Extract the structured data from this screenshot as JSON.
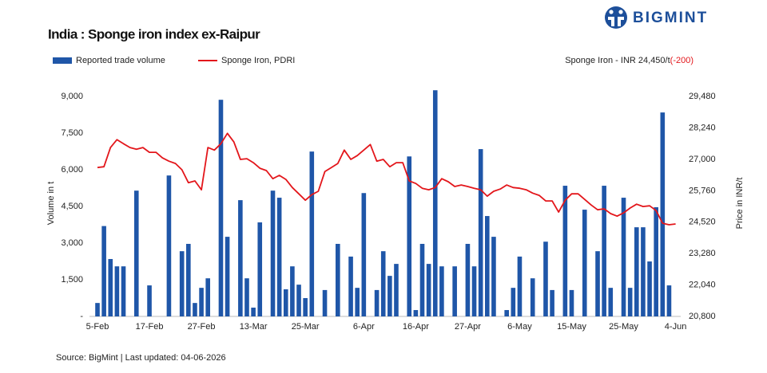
{
  "chart_data": {
    "type": "bar-line",
    "title": "India : Sponge iron index ex-Raipur",
    "brand": "BIGMINT",
    "annotation": {
      "text": "Sponge Iron - INR 24,450/t",
      "change": "(-200)"
    },
    "source": "Source: BigMint | Last updated: 04-06-2026",
    "ylabel": "Volume in t",
    "y2label": "Price in INR/t",
    "categories": [
      "5-Feb",
      null,
      null,
      null,
      null,
      null,
      null,
      null,
      "17-Feb",
      null,
      null,
      null,
      null,
      null,
      null,
      null,
      "27-Feb",
      null,
      null,
      null,
      null,
      null,
      null,
      null,
      "13-Mar",
      null,
      null,
      null,
      null,
      null,
      null,
      null,
      "25-Mar",
      null,
      null,
      null,
      null,
      null,
      null,
      null,
      null,
      "6-Apr",
      null,
      null,
      null,
      null,
      null,
      null,
      null,
      "16-Apr",
      null,
      null,
      null,
      null,
      null,
      null,
      null,
      "27-Apr",
      null,
      null,
      null,
      null,
      null,
      null,
      null,
      "6-May",
      null,
      null,
      null,
      null,
      null,
      null,
      null,
      "15-May",
      null,
      null,
      null,
      null,
      null,
      null,
      null,
      "25-May",
      null,
      null,
      null,
      null,
      null,
      null,
      null,
      "4-Jun"
    ],
    "series": [
      {
        "name": "Reported trade volume",
        "color": "#1f56a8",
        "kind": "bar",
        "values": [
          550,
          3700,
          2350,
          2050,
          2050,
          null,
          5150,
          null,
          1270,
          null,
          null,
          5770,
          null,
          2670,
          2970,
          550,
          1170,
          1560,
          null,
          8870,
          3260,
          null,
          4760,
          1560,
          360,
          3850,
          null,
          5150,
          4860,
          1110,
          2050,
          1300,
          750,
          6750,
          null,
          1080,
          null,
          2970,
          null,
          2450,
          1170,
          5050,
          null,
          1080,
          2670,
          1660,
          2150,
          null,
          6550,
          260,
          2970,
          2150,
          9260,
          2050,
          null,
          2050,
          null,
          2970,
          2050,
          6850,
          4110,
          3260,
          null,
          260,
          1170,
          2450,
          null,
          1560,
          null,
          3060,
          1080,
          null,
          5350,
          1080,
          null,
          4370,
          null,
          2670,
          5350,
          1170,
          null,
          4860,
          1170,
          3650,
          3650,
          2250,
          4470,
          8350,
          1270,
          null
        ]
      },
      {
        "name": "Sponge Iron, PDRI",
        "color": "#e3161b",
        "kind": "line",
        "axis": "y2",
        "values": [
          26680,
          26710,
          27470,
          27780,
          27620,
          27470,
          27400,
          27470,
          27280,
          27280,
          27060,
          26930,
          26840,
          26590,
          26080,
          26150,
          25800,
          27470,
          27370,
          27620,
          28030,
          27690,
          27000,
          27030,
          26870,
          26650,
          26560,
          26240,
          26370,
          26210,
          25890,
          25640,
          25390,
          25610,
          25740,
          26520,
          26680,
          26840,
          27370,
          27000,
          27150,
          27370,
          27590,
          26930,
          27000,
          26710,
          26870,
          26870,
          26150,
          26050,
          25860,
          25800,
          25890,
          26240,
          26120,
          25930,
          25990,
          25930,
          25860,
          25800,
          25550,
          25740,
          25830,
          25990,
          25890,
          25860,
          25800,
          25670,
          25580,
          25360,
          25360,
          24920,
          25390,
          25640,
          25640,
          25420,
          25200,
          25010,
          25050,
          24860,
          24760,
          24890,
          25080,
          25230,
          25140,
          25170,
          24980,
          24480,
          24420,
          24450
        ]
      }
    ],
    "ylim": [
      0,
      9300
    ],
    "yticks": [
      {
        "value": 0,
        "label": "-"
      },
      {
        "value": 1500,
        "label": "1,500"
      },
      {
        "value": 3000,
        "label": "3,000"
      },
      {
        "value": 4500,
        "label": "4,500"
      },
      {
        "value": 6000,
        "label": "6,000"
      },
      {
        "value": 7500,
        "label": "7,500"
      },
      {
        "value": 9000,
        "label": "9,000"
      }
    ],
    "y2lim": [
      20800,
      29770
    ],
    "y2ticks": [
      {
        "value": 20800,
        "label": "20,800"
      },
      {
        "value": 22040,
        "label": "22,040"
      },
      {
        "value": 23280,
        "label": "23,280"
      },
      {
        "value": 24520,
        "label": "24,520"
      },
      {
        "value": 25760,
        "label": "25,760"
      },
      {
        "value": 27000,
        "label": "27,000"
      },
      {
        "value": 28240,
        "label": "28,240"
      },
      {
        "value": 29480,
        "label": "29,480"
      }
    ],
    "grid": false
  }
}
